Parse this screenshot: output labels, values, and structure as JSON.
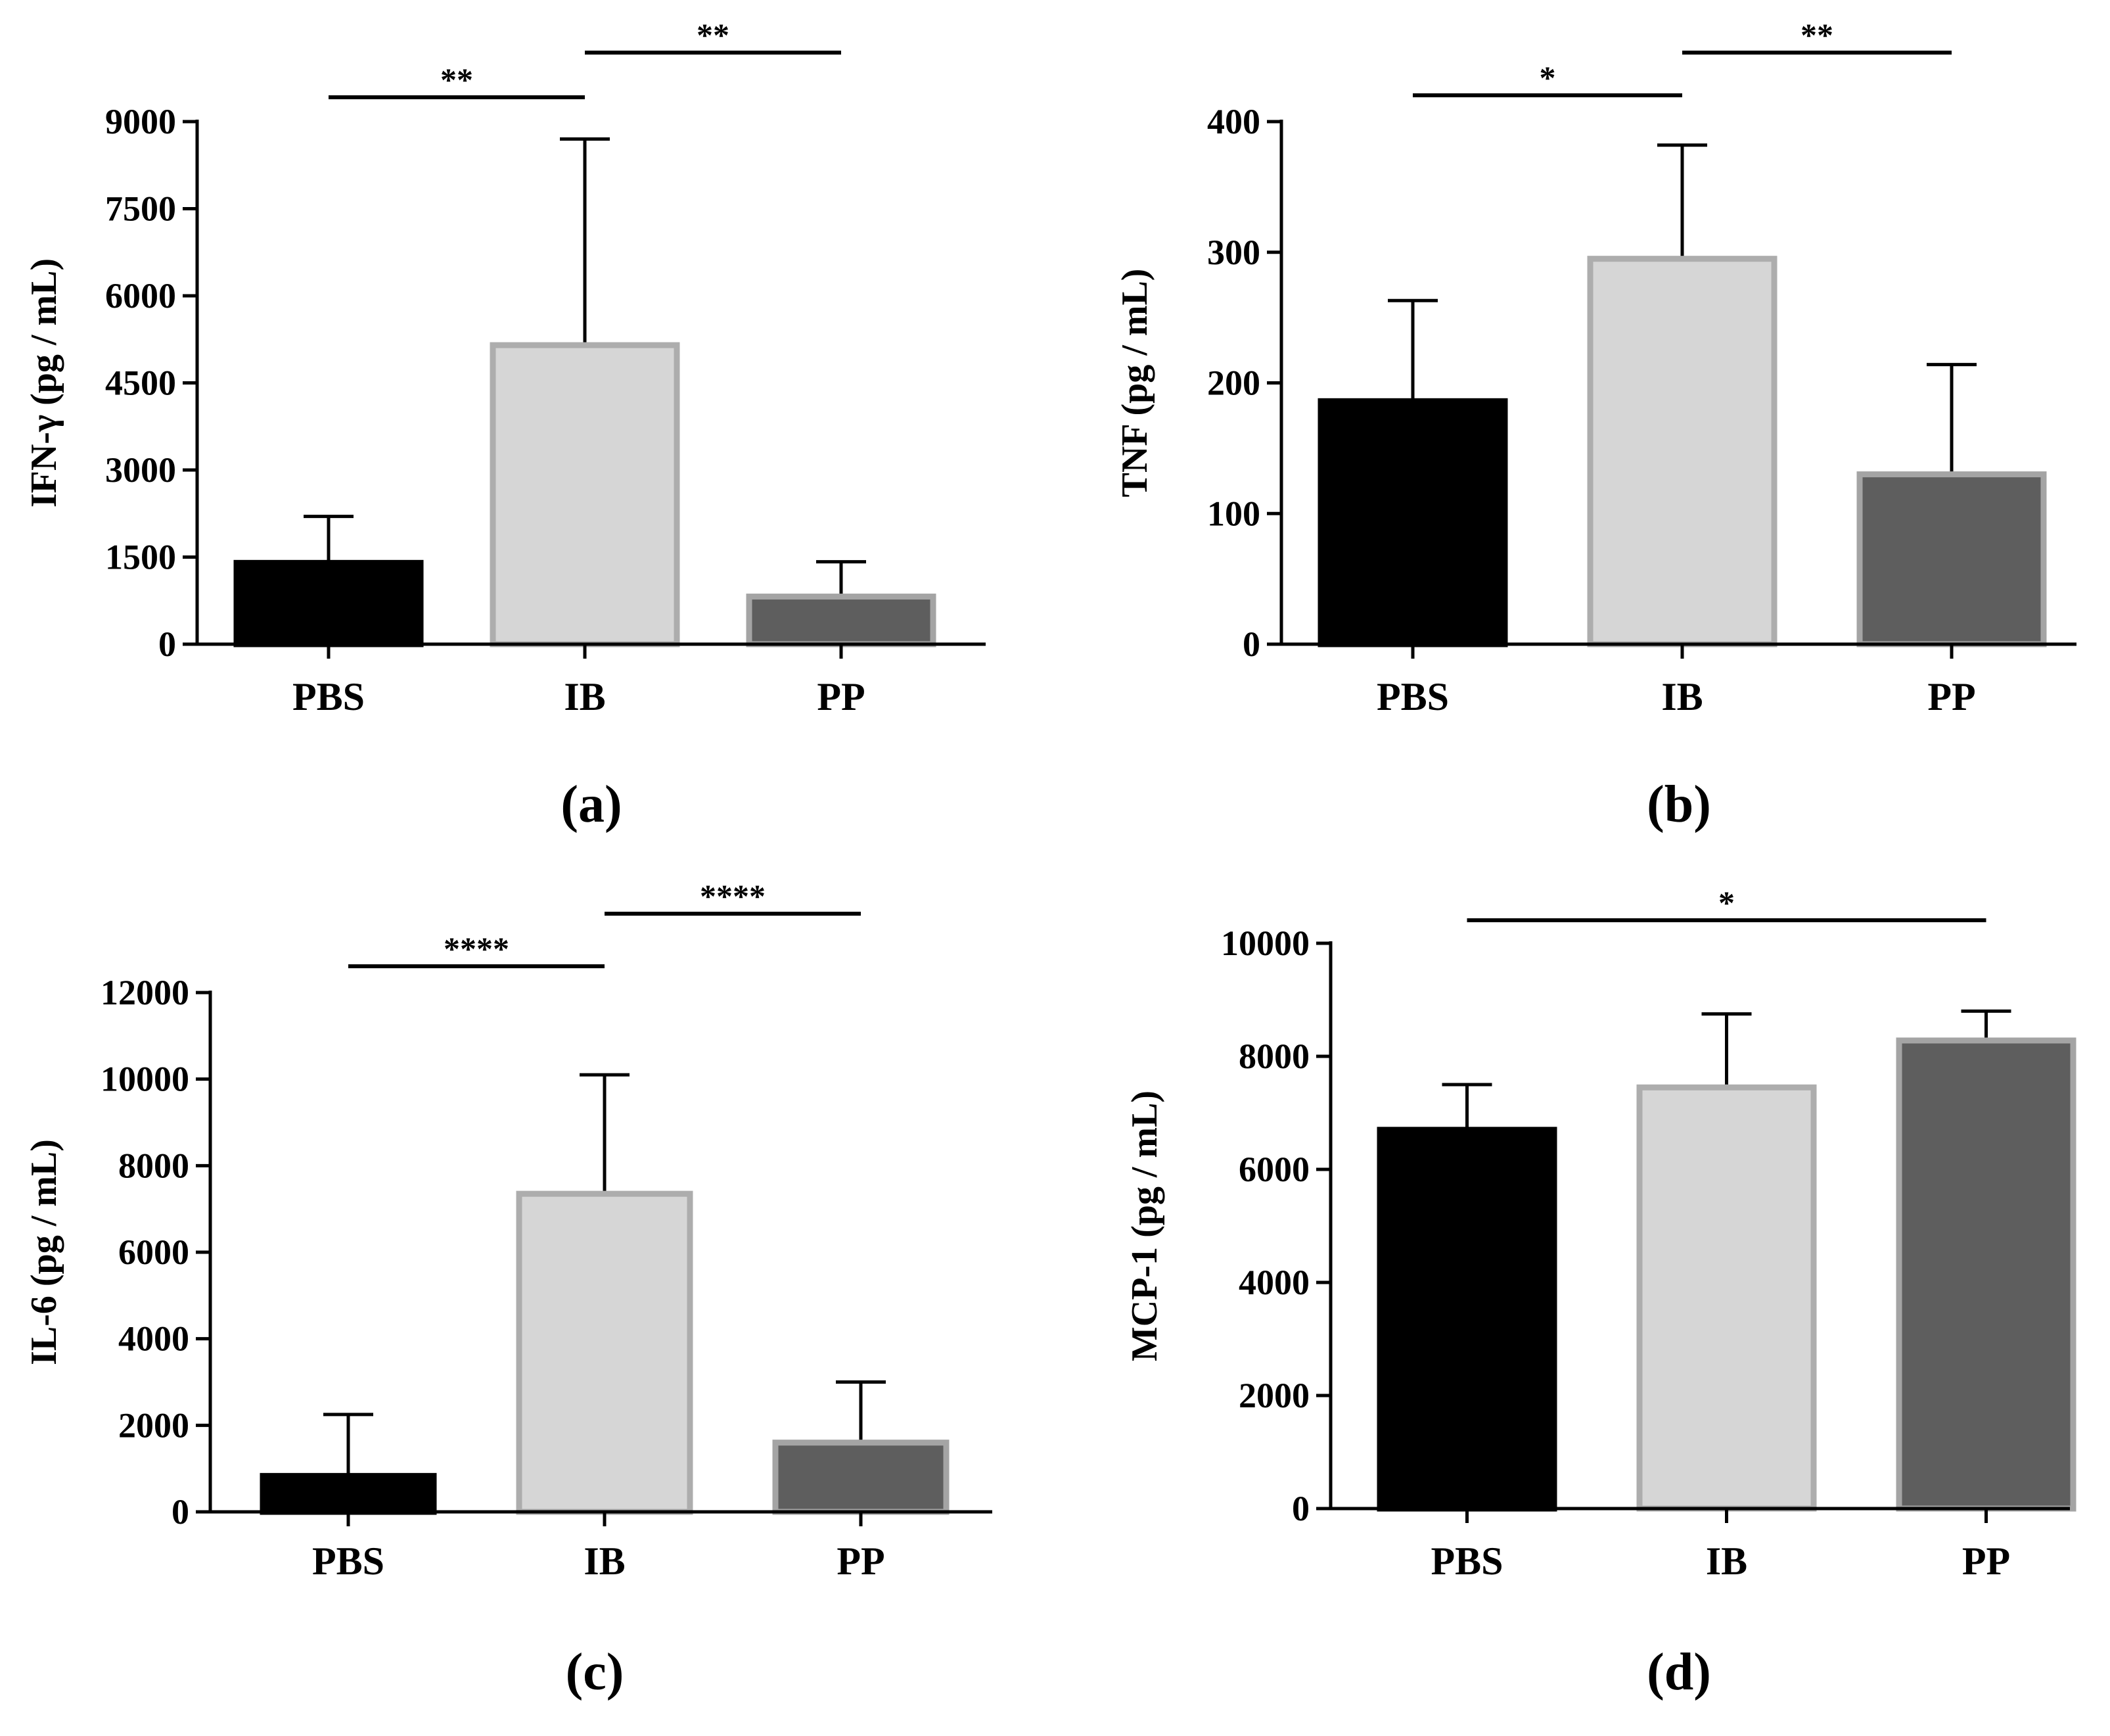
{
  "figure": {
    "colors": {
      "PBS": "#000000",
      "IB": "#d6d6d6",
      "PP": "#5e5e5e",
      "ib_outline": "#adadad",
      "pp_outline": "#a4a4a4"
    }
  },
  "chart_data": [
    {
      "type": "bar",
      "panel_label": "(a)",
      "categories": [
        "PBS",
        "IB",
        "PP"
      ],
      "values": [
        1400,
        5150,
        820
      ],
      "error_upper": [
        2200,
        8700,
        1420
      ],
      "ylabel": "IFN-γ (pg / mL)",
      "ylim": [
        0,
        9000
      ],
      "yticks": [
        0,
        1500,
        3000,
        4500,
        6000,
        7500,
        9000
      ],
      "significance": [
        {
          "from": "PBS",
          "to": "IB",
          "label": "**"
        },
        {
          "from": "IB",
          "to": "PP",
          "label": "**"
        }
      ]
    },
    {
      "type": "bar",
      "panel_label": "(b)",
      "categories": [
        "PBS",
        "IB",
        "PP"
      ],
      "values": [
        186,
        295,
        130
      ],
      "error_upper": [
        263,
        382,
        214
      ],
      "ylabel": "TNF (pg / mL)",
      "ylim": [
        0,
        400
      ],
      "yticks": [
        0,
        100,
        200,
        300,
        400
      ],
      "significance": [
        {
          "from": "PBS",
          "to": "IB",
          "label": "*"
        },
        {
          "from": "IB",
          "to": "PP",
          "label": "**"
        }
      ]
    },
    {
      "type": "bar",
      "panel_label": "(c)",
      "categories": [
        "PBS",
        "IB",
        "PP"
      ],
      "values": [
        830,
        7350,
        1600
      ],
      "error_upper": [
        2250,
        10100,
        3000
      ],
      "ylabel": "IL-6 (pg / mL)",
      "ylim": [
        0,
        12000
      ],
      "yticks": [
        0,
        2000,
        4000,
        6000,
        8000,
        10000,
        12000
      ],
      "significance": [
        {
          "from": "PBS",
          "to": "IB",
          "label": "****"
        },
        {
          "from": "IB",
          "to": "PP",
          "label": "****"
        }
      ]
    },
    {
      "type": "bar",
      "panel_label": "(d)",
      "categories": [
        "PBS",
        "IB",
        "PP"
      ],
      "values": [
        6700,
        7450,
        8280
      ],
      "error_upper": [
        7500,
        8750,
        8800
      ],
      "ylabel": "MCP-1 (pg / mL)",
      "ylim": [
        0,
        10000
      ],
      "yticks": [
        0,
        2000,
        4000,
        6000,
        8000,
        10000
      ],
      "significance": [
        {
          "from": "PBS",
          "to": "PP",
          "label": "*"
        }
      ]
    }
  ]
}
